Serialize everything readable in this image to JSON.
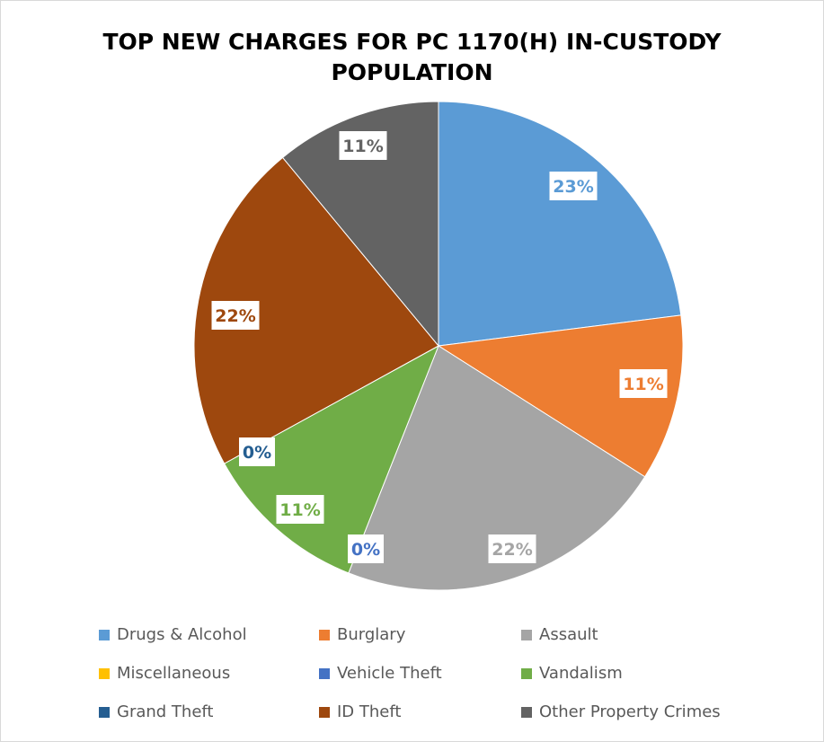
{
  "chart_data": {
    "type": "pie",
    "title_lines": [
      "TOP NEW CHARGES FOR PC 1170(H) IN-CUSTODY",
      "POPULATION"
    ],
    "categories": [
      "Drugs & Alcohol",
      "Burglary",
      "Assault",
      "Miscellaneous",
      "Vehicle Theft",
      "Vandalism",
      "Grand Theft",
      "ID Theft",
      "Other Property Crimes"
    ],
    "values": [
      23,
      11,
      22,
      0,
      0,
      11,
      0,
      22,
      11
    ],
    "labels": [
      "23%",
      "11%",
      "22%",
      "",
      "0%",
      "11%",
      "0%",
      "22%",
      "11%"
    ],
    "colors": [
      "#5b9bd5",
      "#ed7d31",
      "#a5a5a5",
      "#ffc000",
      "#4472c4",
      "#70ad47",
      "#255e91",
      "#9e480e",
      "#636363"
    ],
    "legend_position": "bottom"
  }
}
